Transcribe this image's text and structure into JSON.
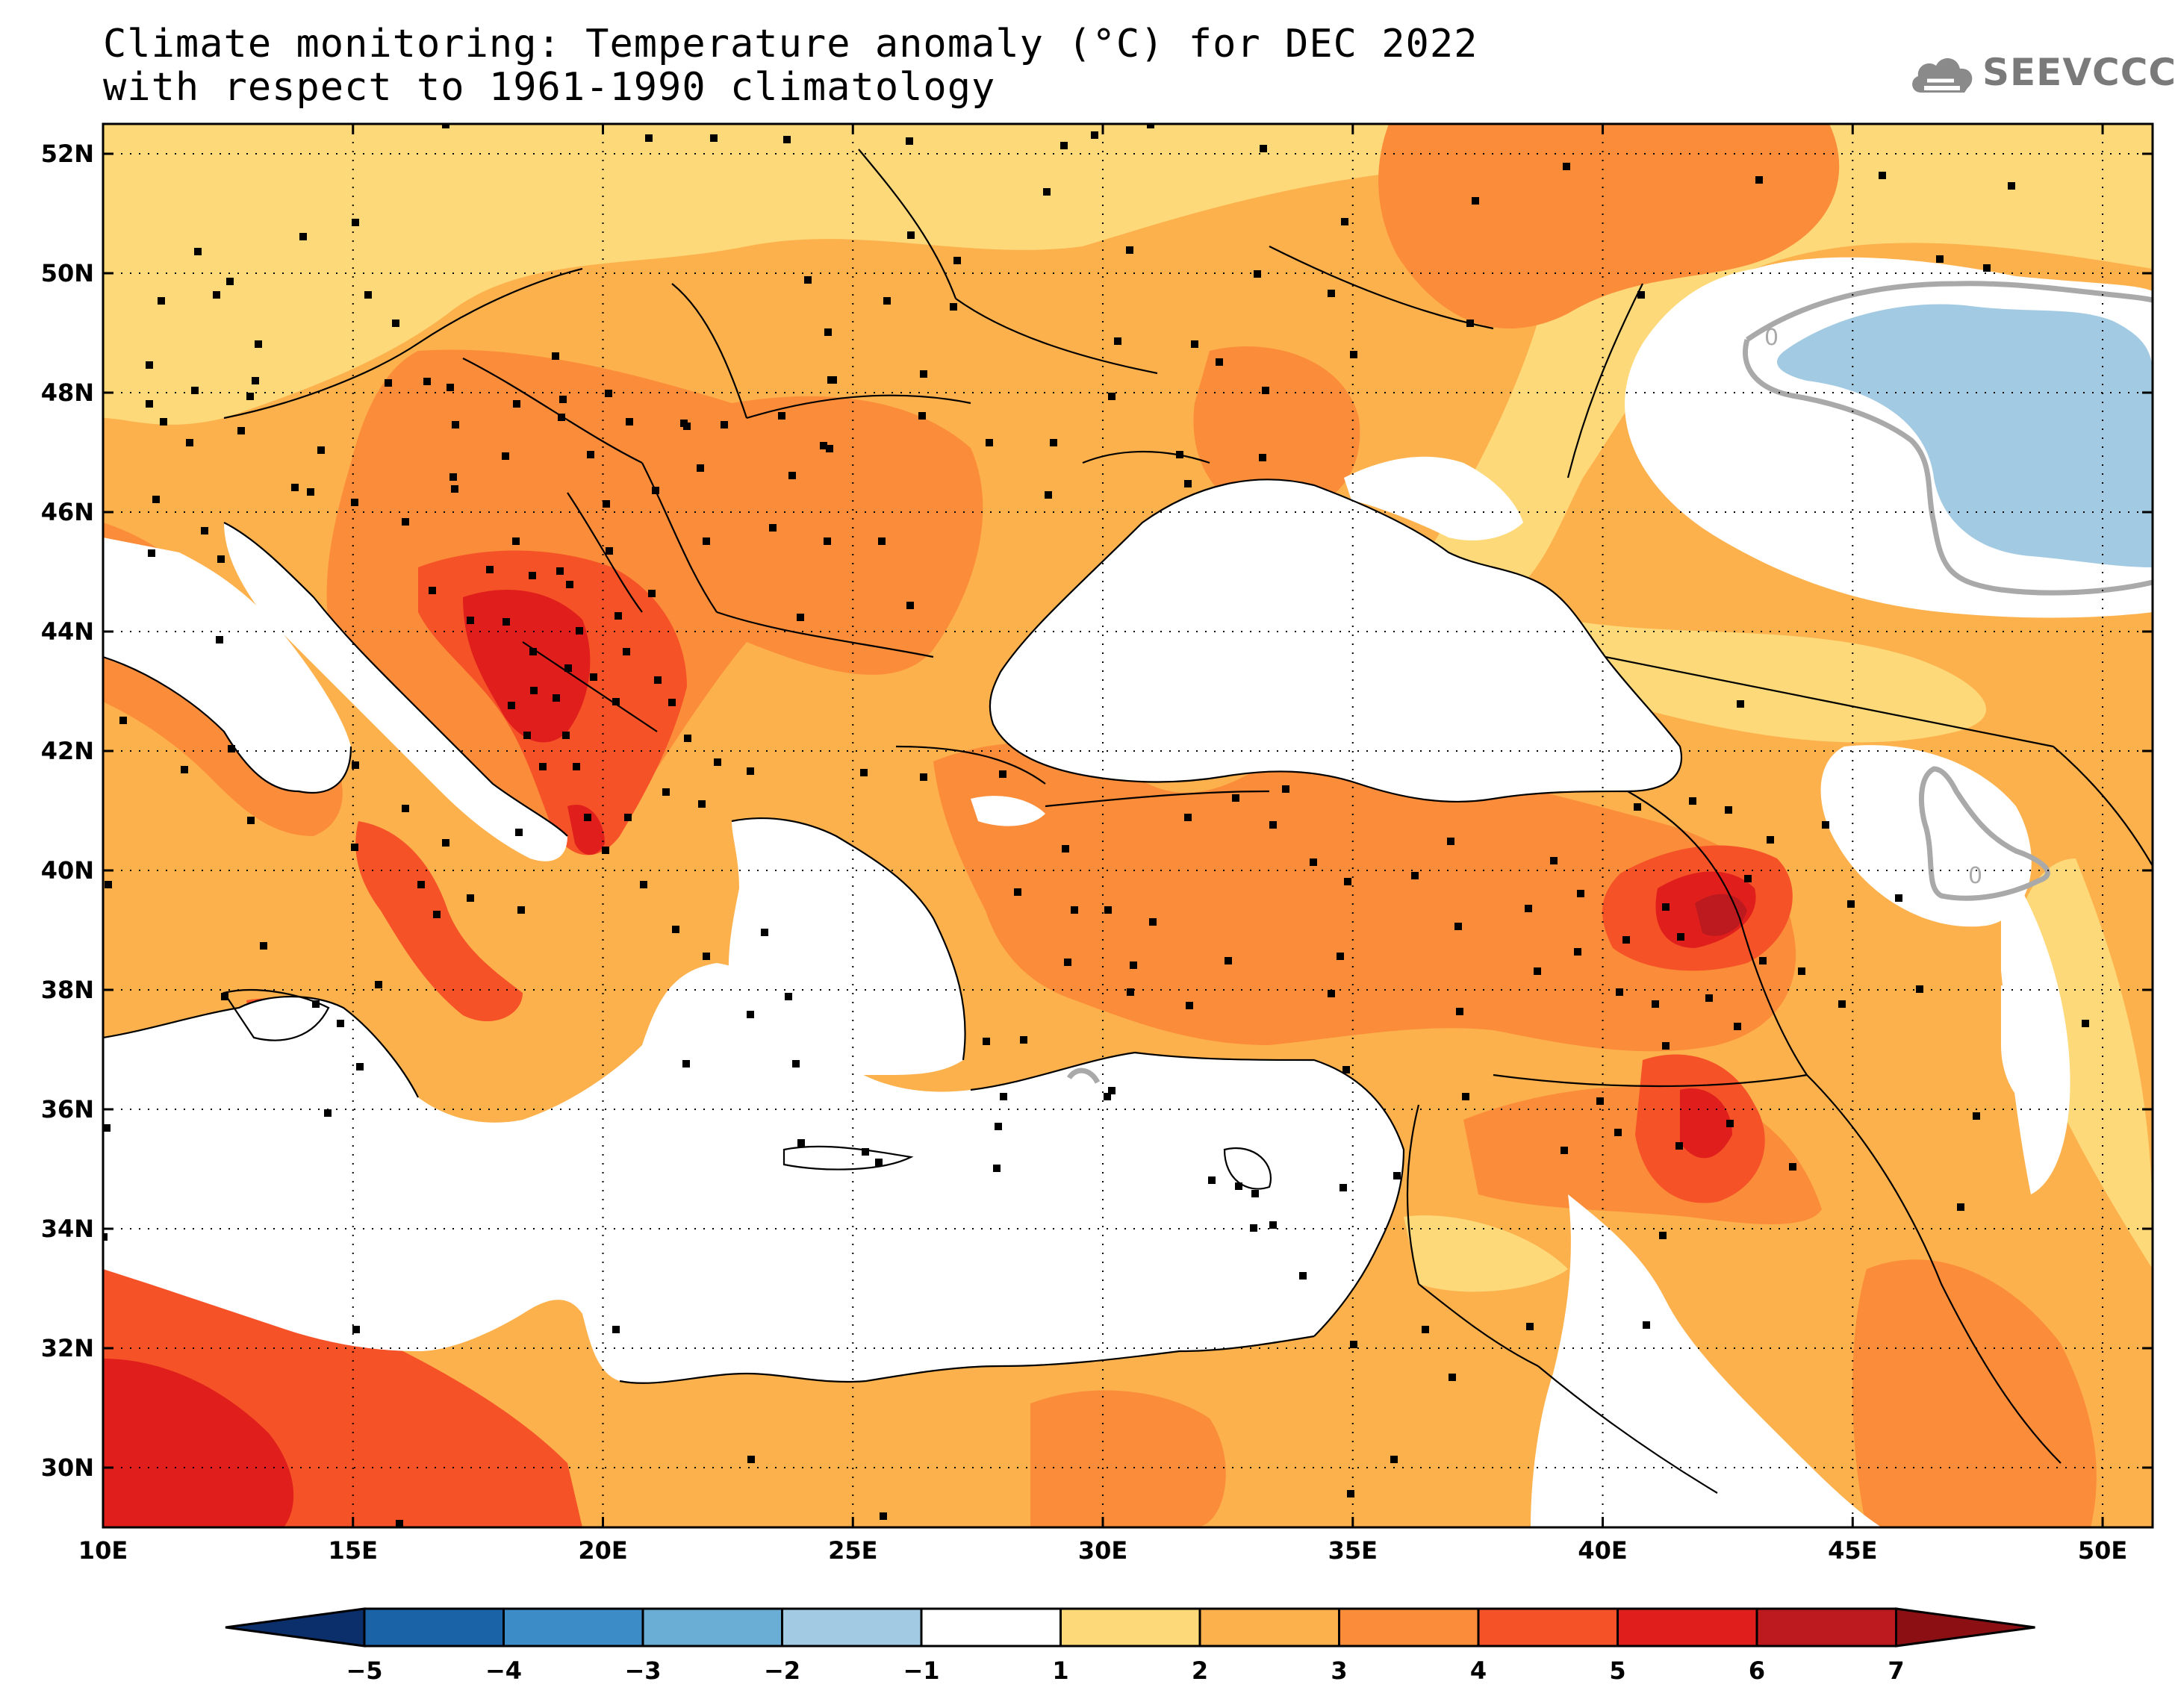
{
  "title": {
    "line1": "Climate monitoring: Temperature anomaly (°C) for DEC 2022",
    "line2": "with respect to 1961-1990 climatology"
  },
  "logo": {
    "text": "SEEVCCC",
    "icon": "cloud-icon"
  },
  "map": {
    "lon_range": [
      10,
      51
    ],
    "lat_range": [
      29,
      52.5
    ],
    "lon_ticks": [
      "10E",
      "15E",
      "20E",
      "25E",
      "30E",
      "35E",
      "40E",
      "45E",
      "50E"
    ],
    "lat_ticks": [
      "52N",
      "50N",
      "48N",
      "46N",
      "44N",
      "42N",
      "40N",
      "38N",
      "36N",
      "34N",
      "32N",
      "30N"
    ],
    "contour_label": "0"
  },
  "colorbar": {
    "ticks": [
      "-5",
      "-4",
      "-3",
      "-2",
      "-1",
      "1",
      "2",
      "3",
      "4",
      "5",
      "6",
      "7"
    ],
    "colors": [
      "#0a2f6b",
      "#1b63a7",
      "#3c8dc7",
      "#6aaed6",
      "#a2cbe3",
      "#ffffff",
      "#fdd97a",
      "#fcb14c",
      "#fb8c3a",
      "#f65228",
      "#e01f1c",
      "#bc1a1e",
      "#8c0f14"
    ]
  }
}
